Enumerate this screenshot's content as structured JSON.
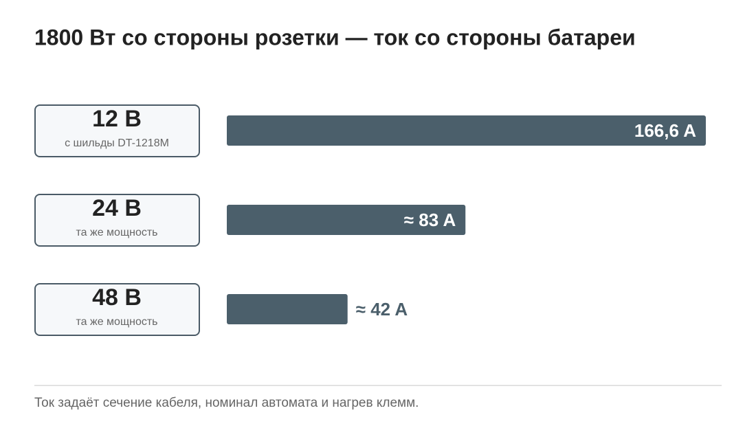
{
  "chart_data": {
    "type": "bar",
    "orientation": "horizontal",
    "title": "1800 Вт со стороны розетки — ток со стороны батареи",
    "categories": [
      "12 В",
      "24 В",
      "48 В"
    ],
    "sublabels": [
      "с шильды DT-1218M",
      "та же мощность",
      "та же мощность"
    ],
    "values": [
      166.6,
      83,
      42
    ],
    "value_labels": [
      "166,6 A",
      "≈ 83 A",
      "≈ 42 A"
    ],
    "xlim": [
      0,
      166.6
    ],
    "color": "#4b5f6b",
    "footnote": "Ток задаёт сечение кабеля, номинал автомата и нагрев клемм."
  }
}
